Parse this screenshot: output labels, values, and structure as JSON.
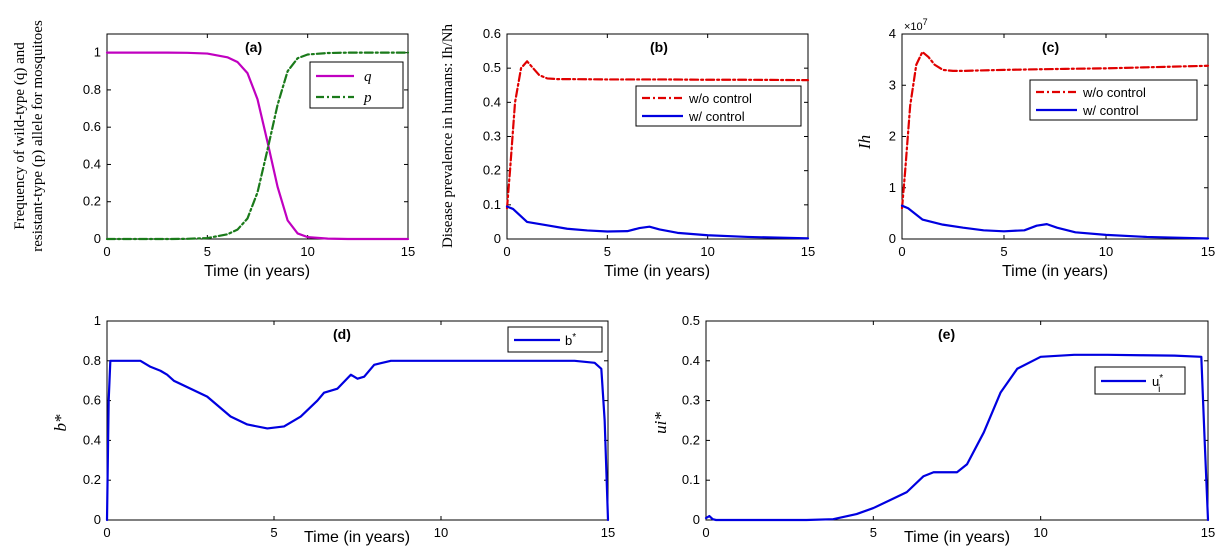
{
  "chart_data": [
    {
      "id": "a",
      "type": "line",
      "panel_label": "(a)",
      "xlabel": "Time (in years)",
      "ylabel_lines": [
        "Frequency of wild-type (q) and",
        "resistant-type (p) allele for mosquitoes"
      ],
      "xlim": [
        0,
        15
      ],
      "ylim": [
        0,
        1.1
      ],
      "xticks": [
        0,
        5,
        10,
        15
      ],
      "yticks": [
        0,
        0.2,
        0.4,
        0.6,
        0.8,
        1
      ],
      "legend_position": "top-right",
      "series": [
        {
          "name": "q",
          "color": "#c000c0",
          "dash": "solid",
          "x": [
            0,
            1,
            2,
            3,
            4,
            5,
            6,
            6.5,
            7,
            7.5,
            8,
            8.25,
            8.5,
            9,
            9.5,
            10,
            11,
            12,
            13,
            14,
            15
          ],
          "y": [
            1,
            1,
            1,
            1,
            0.999,
            0.995,
            0.975,
            0.95,
            0.89,
            0.75,
            0.52,
            0.4,
            0.28,
            0.1,
            0.03,
            0.01,
            0.002,
            0,
            0,
            0,
            0
          ]
        },
        {
          "name": "p",
          "color": "#1a7a1a",
          "dash": "dashdot",
          "x": [
            0,
            1,
            2,
            3,
            4,
            5,
            6,
            6.5,
            7,
            7.5,
            8,
            8.25,
            8.5,
            9,
            9.5,
            10,
            11,
            12,
            13,
            14,
            15
          ],
          "y": [
            0,
            0,
            0,
            0,
            0.001,
            0.005,
            0.025,
            0.05,
            0.11,
            0.25,
            0.48,
            0.6,
            0.72,
            0.9,
            0.97,
            0.99,
            0.998,
            1,
            1,
            1,
            1
          ]
        }
      ]
    },
    {
      "id": "b",
      "type": "line",
      "panel_label": "(b)",
      "xlabel": "Time (in years)",
      "ylabel_lines": [
        "Disease prevalence in humans: Ih/Nh"
      ],
      "xlim": [
        0,
        15
      ],
      "ylim": [
        0,
        0.6
      ],
      "xticks": [
        0,
        5,
        10,
        15
      ],
      "yticks": [
        0,
        0.1,
        0.2,
        0.3,
        0.4,
        0.5,
        0.6
      ],
      "legend_position": "upper-right",
      "series": [
        {
          "name": "w/o control",
          "color": "#e00000",
          "dash": "dashdot",
          "x": [
            0,
            0.15,
            0.4,
            0.7,
            1,
            1.3,
            1.6,
            2,
            2.5,
            3,
            5,
            8,
            10,
            12,
            15
          ],
          "y": [
            0.09,
            0.2,
            0.4,
            0.5,
            0.52,
            0.5,
            0.48,
            0.47,
            0.468,
            0.468,
            0.467,
            0.467,
            0.466,
            0.466,
            0.465
          ]
        },
        {
          "name": "w/ control",
          "color": "#0000e0",
          "dash": "solid",
          "x": [
            0,
            0.3,
            1,
            2,
            3,
            4,
            5,
            6,
            6.6,
            7.1,
            7.6,
            8.5,
            10,
            12,
            15
          ],
          "y": [
            0.095,
            0.088,
            0.05,
            0.04,
            0.03,
            0.025,
            0.022,
            0.023,
            0.032,
            0.036,
            0.028,
            0.018,
            0.011,
            0.006,
            0.002
          ]
        }
      ]
    },
    {
      "id": "c",
      "type": "line",
      "panel_label": "(c)",
      "xlabel": "Time (in years)",
      "ylabel_lines": [
        "Ih"
      ],
      "y_multiplier": "×10",
      "y_multiplier_exp": "7",
      "xlim": [
        0,
        15
      ],
      "ylim": [
        0,
        4
      ],
      "xticks": [
        0,
        5,
        10,
        15
      ],
      "yticks": [
        0,
        1,
        2,
        3,
        4
      ],
      "legend_position": "upper-right",
      "series": [
        {
          "name": "w/o control",
          "color": "#e00000",
          "dash": "dashdot",
          "x": [
            0,
            0.15,
            0.4,
            0.7,
            1,
            1.3,
            1.6,
            2,
            2.5,
            3,
            5,
            8,
            10,
            12,
            15
          ],
          "y": [
            0.6,
            1.3,
            2.6,
            3.4,
            3.65,
            3.55,
            3.4,
            3.3,
            3.28,
            3.28,
            3.3,
            3.32,
            3.33,
            3.35,
            3.38
          ]
        },
        {
          "name": "w/ control",
          "color": "#0000e0",
          "dash": "solid",
          "x": [
            0,
            0.3,
            1,
            2,
            3,
            4,
            5,
            6,
            6.6,
            7.1,
            7.6,
            8.5,
            10,
            12,
            15
          ],
          "y": [
            0.65,
            0.6,
            0.38,
            0.28,
            0.22,
            0.17,
            0.15,
            0.17,
            0.26,
            0.29,
            0.22,
            0.13,
            0.08,
            0.04,
            0.01
          ]
        }
      ]
    },
    {
      "id": "d",
      "type": "line",
      "panel_label": "(d)",
      "xlabel": "Time (in years)",
      "ylabel_lines": [
        "b*"
      ],
      "xlim": [
        0,
        15
      ],
      "ylim": [
        0,
        1
      ],
      "xticks": [
        0,
        5,
        10,
        15
      ],
      "yticks": [
        0,
        0.2,
        0.4,
        0.6,
        0.8,
        1
      ],
      "legend_position": "top-right",
      "series": [
        {
          "name": "b",
          "name_sup": "*",
          "color": "#0000e0",
          "dash": "solid",
          "x": [
            0,
            0.05,
            0.1,
            1,
            1.3,
            1.6,
            1.8,
            2,
            3,
            3.7,
            4.2,
            4.8,
            5.3,
            5.8,
            6.3,
            6.5,
            6.9,
            7.3,
            7.5,
            7.7,
            8,
            8.5,
            10,
            12,
            14,
            14.6,
            14.8,
            14.9,
            15
          ],
          "y": [
            0,
            0.6,
            0.8,
            0.8,
            0.77,
            0.75,
            0.73,
            0.7,
            0.62,
            0.52,
            0.48,
            0.46,
            0.47,
            0.52,
            0.6,
            0.64,
            0.66,
            0.73,
            0.71,
            0.72,
            0.78,
            0.8,
            0.8,
            0.8,
            0.8,
            0.79,
            0.76,
            0.5,
            0
          ]
        }
      ]
    },
    {
      "id": "e",
      "type": "line",
      "panel_label": "(e)",
      "xlabel": "Time (in years)",
      "ylabel_lines": [
        "ui*"
      ],
      "xlim": [
        0,
        15
      ],
      "ylim": [
        0,
        0.5
      ],
      "xticks": [
        0,
        5,
        10,
        15
      ],
      "yticks": [
        0,
        0.1,
        0.2,
        0.3,
        0.4,
        0.5
      ],
      "legend_position": "upper-right",
      "series": [
        {
          "name": "u",
          "name_sub": "i",
          "name_sup": "*",
          "color": "#0000e0",
          "dash": "solid",
          "x": [
            0,
            0.1,
            0.2,
            0.3,
            1,
            2,
            3,
            3.8,
            4.5,
            5,
            5.5,
            6,
            6.5,
            6.8,
            7.1,
            7.5,
            7.8,
            8.3,
            8.8,
            9.3,
            10,
            11,
            12,
            13,
            14,
            14.8,
            14.9,
            15
          ],
          "y": [
            0.005,
            0.01,
            0.002,
            0,
            0,
            0,
            0,
            0.002,
            0.015,
            0.03,
            0.05,
            0.07,
            0.11,
            0.12,
            0.12,
            0.12,
            0.14,
            0.22,
            0.32,
            0.38,
            0.41,
            0.415,
            0.415,
            0.414,
            0.413,
            0.41,
            0.2,
            0
          ]
        }
      ]
    }
  ]
}
